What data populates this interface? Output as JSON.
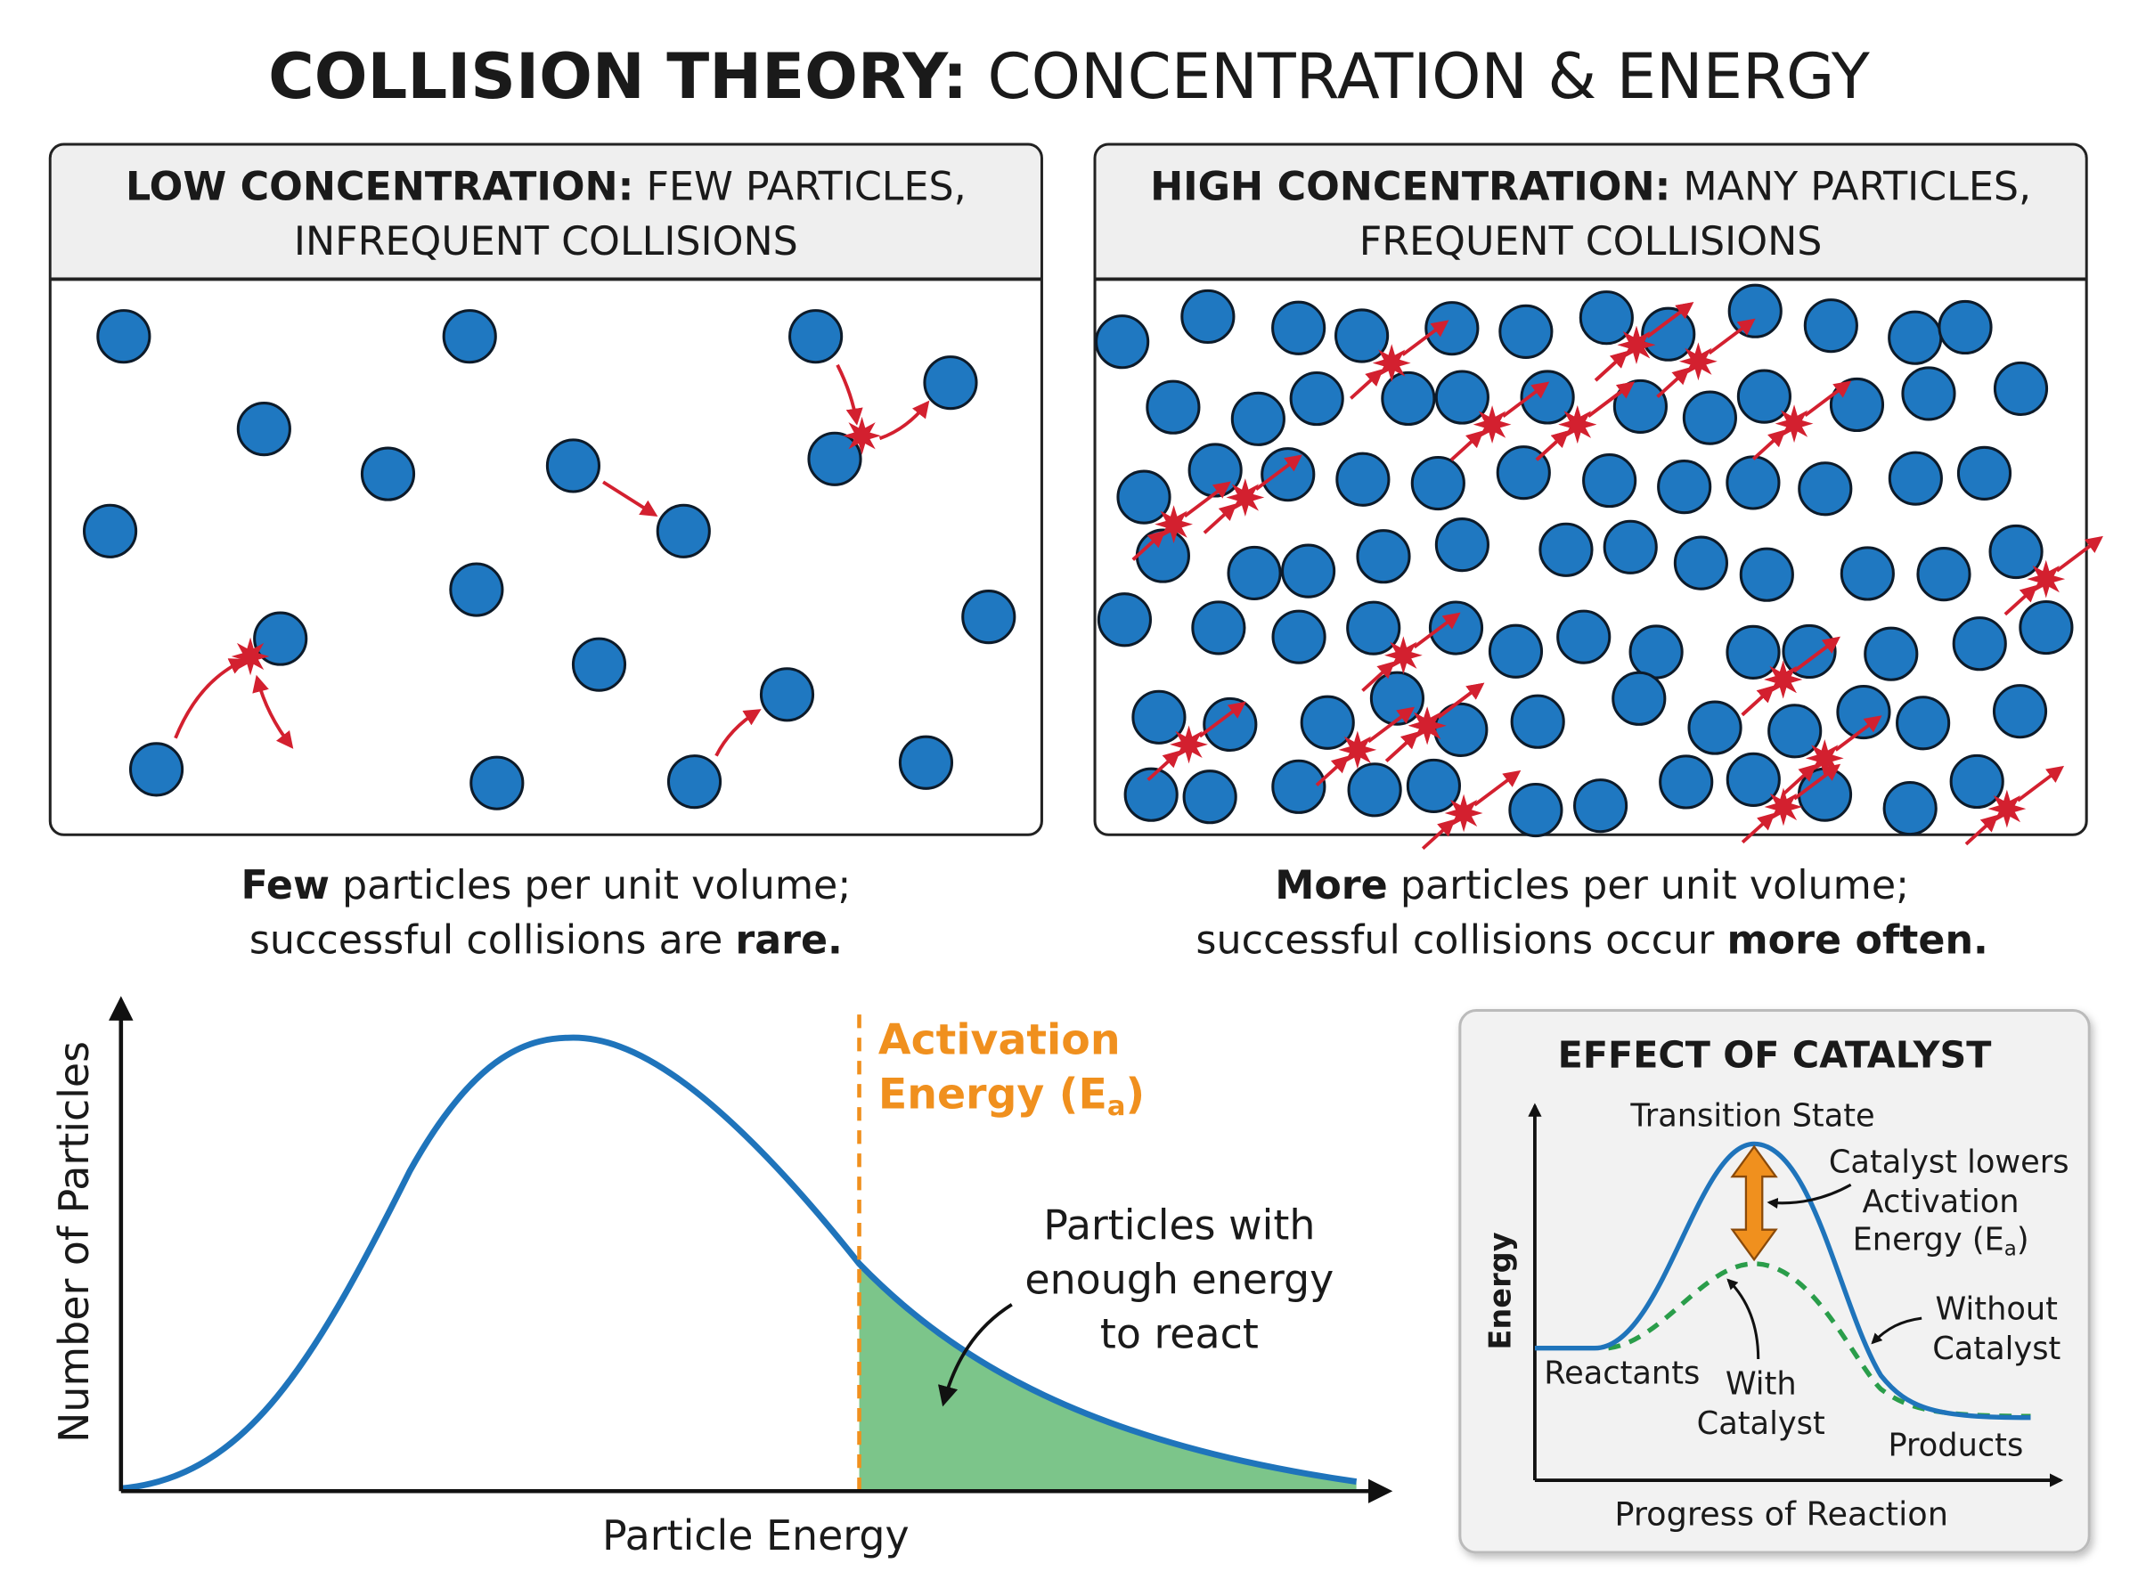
{
  "title": {
    "bold": "COLLISION THEORY:",
    "regular": " CONCENTRATION & ENERGY"
  },
  "low_panel": {
    "heading_bold": "LOW CONCENTRATION:",
    "heading_rest": " FEW PARTICLES,",
    "heading_line2": "INFREQUENT COLLISIONS",
    "caption_line1_bold": "Few",
    "caption_line1_rest": " particles per unit volume;",
    "caption_line2_rest": "successful collisions are ",
    "caption_line2_bold": "rare."
  },
  "high_panel": {
    "heading_bold": "HIGH CONCENTRATION:",
    "heading_rest": " MANY PARTICLES,",
    "heading_line2": "FREQUENT COLLISIONS",
    "caption_line1_bold": "More",
    "caption_line1_rest": " particles per unit volume;",
    "caption_line2_rest": "successful collisions occur ",
    "caption_line2_bold": "more often."
  },
  "distribution": {
    "ylabel": "Number of Particles",
    "xlabel": "Particle Energy",
    "threshold_label_line1": "Activation",
    "threshold_label_line2": "Energy (E",
    "threshold_label_sub": "a",
    "threshold_label_close": ")",
    "area_label": [
      "Particles with",
      "enough energy",
      "to react"
    ]
  },
  "catalyst": {
    "title": "EFFECT OF CATALYST",
    "ylabel": "Energy",
    "xlabel": "Progress of Reaction",
    "transition_state": "Transition State",
    "lowers_label": [
      "Catalyst lowers",
      "Activation",
      "Energy (E"
    ],
    "lowers_sub": "a",
    "lowers_close": ")",
    "without_label": [
      "Without",
      "Catalyst"
    ],
    "with_label": [
      "With",
      "Catalyst"
    ],
    "reactants": "Reactants",
    "products": "Products"
  },
  "colors": {
    "particle": "#1f78c1",
    "collision": "#d3202f",
    "activation": "#f0901e",
    "area": "#7cc58a",
    "curve": "#1f74bb",
    "catalyst_curve": "#2a9d4a"
  }
}
